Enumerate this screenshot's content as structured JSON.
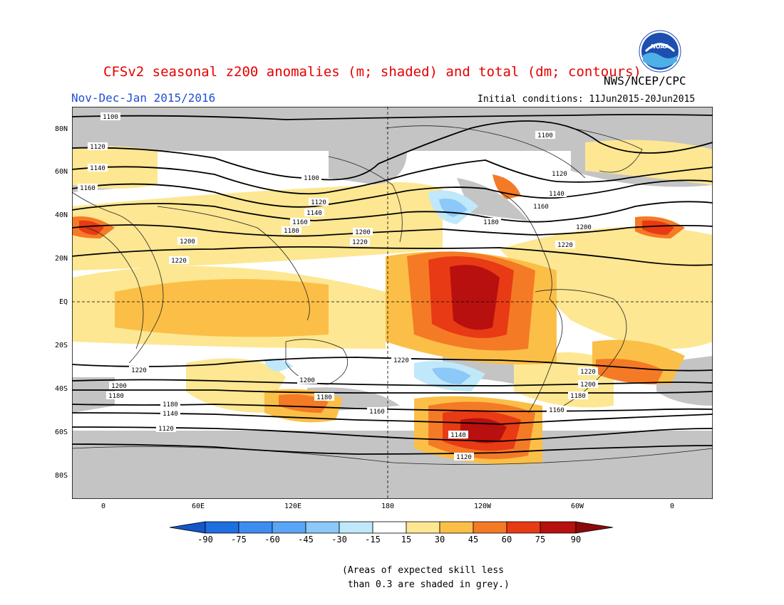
{
  "title": "CFSv2 seasonal z200 anomalies (m; shaded) and total (dm; contours)",
  "period": "Nov-Dec-Jan 2015/2016",
  "agency": "NWS/NCEP/CPC",
  "initial_conditions": "Initial conditions: 11Jun2015-20Jun2015",
  "logo_text": "NOAA",
  "lat_labels": [
    "80N",
    "60N",
    "40N",
    "20N",
    "EQ",
    "20S",
    "40S",
    "60S",
    "80S"
  ],
  "lon_labels": [
    "0",
    "60E",
    "120E",
    "180",
    "120W",
    "60W",
    "0"
  ],
  "colorbar": {
    "labels": [
      "-90",
      "-75",
      "-60",
      "-45",
      "-30",
      "-15",
      "15",
      "30",
      "45",
      "60",
      "75",
      "90"
    ],
    "colors": [
      "#1e6fe0",
      "#3d8df0",
      "#5aa5f5",
      "#8cc8f8",
      "#bfe8fb",
      "#ffffff",
      "#ffffff",
      "#fde792",
      "#fbbf47",
      "#f57a26",
      "#e83a14",
      "#b8100e"
    ],
    "low_color": "#1556c8",
    "high_color": "#8a0a0a"
  },
  "contour_labels": [
    "1100",
    "1120",
    "1140",
    "1160",
    "1180",
    "1200",
    "1220"
  ],
  "note": "(Areas of expected skill less\n than 0.3 are shaded in grey.)"
}
